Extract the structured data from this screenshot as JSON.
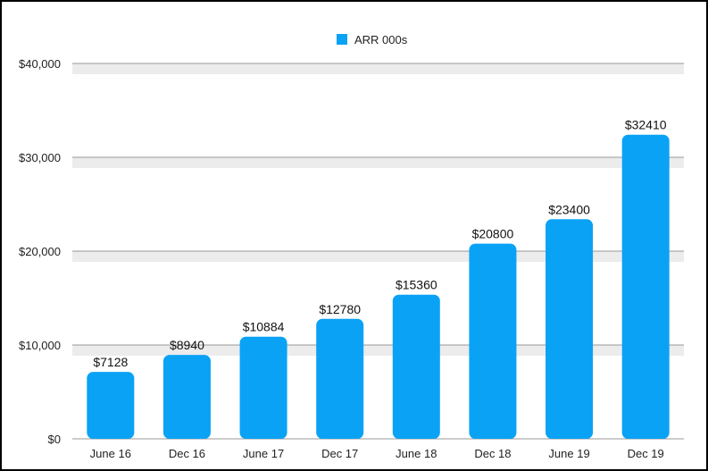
{
  "chart_data": {
    "type": "bar",
    "categories": [
      "June 16",
      "Dec 16",
      "June 17",
      "Dec 17",
      "June 18",
      "Dec 18",
      "June 19",
      "Dec 19"
    ],
    "series": [
      {
        "name": "ARR 000s",
        "values": [
          7128,
          8940,
          10884,
          12780,
          15360,
          20800,
          23400,
          32410
        ],
        "data_labels": [
          "$7128",
          "$8940",
          "$10884",
          "$12780",
          "$15360",
          "$20800",
          "$23400",
          "$32410"
        ]
      }
    ],
    "ylim": [
      0,
      40000
    ],
    "yticks": [
      0,
      10000,
      20000,
      30000,
      40000
    ],
    "ytick_labels": [
      "$0",
      "$10,000",
      "$20,000",
      "$30,000",
      "$40,000"
    ],
    "legend": {
      "position": "top-center",
      "label": "ARR 000s"
    },
    "grid": true,
    "colors": {
      "bar": "#0aa2f5",
      "grid": "#999999",
      "band": "#ececec"
    }
  }
}
